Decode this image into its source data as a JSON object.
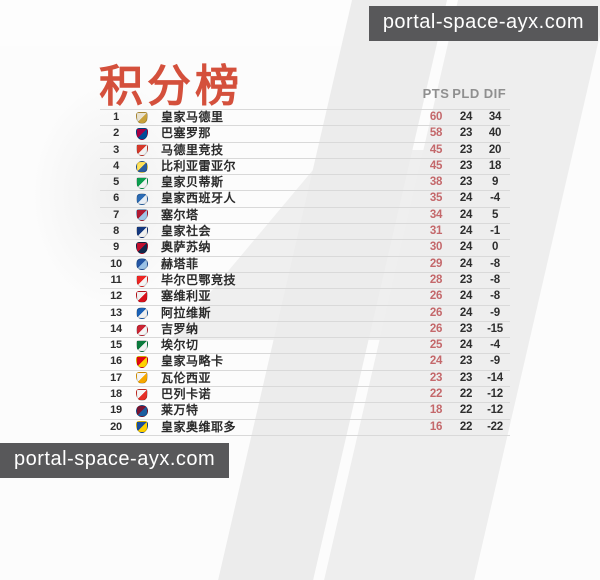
{
  "watermark": {
    "text": "portal-space-ayx.com"
  },
  "colors": {
    "title_red": "#d4503c",
    "points_red": "#c4686b",
    "dark_text": "#2e2e2e",
    "header_gray": "#8f8f8f",
    "line_gray": "#d9d9d9",
    "watermark_bg": "#58585a"
  },
  "chart_data": {
    "type": "table",
    "title": "积分榜",
    "header": {
      "pts": "PTS",
      "pld": "PLD",
      "dif": "DIF"
    },
    "rows": [
      {
        "rank": 1,
        "team": "皇家马德里",
        "icon": "real-madrid-crest",
        "shape": "shield",
        "crest_colors": [
          "#e8e2d0",
          "#c9a13b"
        ],
        "pts": 60,
        "pld": 24,
        "dif": 34
      },
      {
        "rank": 2,
        "team": "巴塞罗那",
        "icon": "barcelona-crest",
        "shape": "shield",
        "crest_colors": [
          "#a50044",
          "#004d98"
        ],
        "pts": 58,
        "pld": 23,
        "dif": 40
      },
      {
        "rank": 3,
        "team": "马德里竞技",
        "icon": "atletico-madrid-crest",
        "shape": "shield",
        "crest_colors": [
          "#d6392b",
          "#f2f2f2"
        ],
        "pts": 45,
        "pld": 23,
        "dif": 20
      },
      {
        "rank": 4,
        "team": "比利亚雷亚尔",
        "icon": "villarreal-crest",
        "shape": "circle",
        "crest_colors": [
          "#ffe25a",
          "#2a5d9f"
        ],
        "pts": 45,
        "pld": 23,
        "dif": 18
      },
      {
        "rank": 5,
        "team": "皇家贝蒂斯",
        "icon": "real-betis-crest",
        "shape": "shield",
        "crest_colors": [
          "#0b9e4e",
          "#f2f2f2"
        ],
        "pts": 38,
        "pld": 23,
        "dif": 9
      },
      {
        "rank": 6,
        "team": "皇家西班牙人",
        "icon": "espanyol-crest",
        "shape": "circle",
        "crest_colors": [
          "#2d6cb5",
          "#e8eef5"
        ],
        "pts": 35,
        "pld": 24,
        "dif": -4
      },
      {
        "rank": 7,
        "team": "塞尔塔",
        "icon": "celta-vigo-crest",
        "shape": "shield",
        "crest_colors": [
          "#b01932",
          "#9fc5e8"
        ],
        "pts": 34,
        "pld": 24,
        "dif": 5
      },
      {
        "rank": 8,
        "team": "皇家社会",
        "icon": "real-sociedad-crest",
        "shape": "shield",
        "crest_colors": [
          "#14387f",
          "#f0f0f0"
        ],
        "pts": 31,
        "pld": 24,
        "dif": -1
      },
      {
        "rank": 9,
        "team": "奥萨苏纳",
        "icon": "osasuna-crest",
        "shape": "shield",
        "crest_colors": [
          "#c00f2f",
          "#10284b"
        ],
        "pts": 30,
        "pld": 24,
        "dif": 0
      },
      {
        "rank": 10,
        "team": "赫塔菲",
        "icon": "getafe-crest",
        "shape": "circle",
        "crest_colors": [
          "#2456a5",
          "#9bc2e6"
        ],
        "pts": 29,
        "pld": 24,
        "dif": -8
      },
      {
        "rank": 11,
        "team": "毕尔巴鄂竞技",
        "icon": "athletic-bilbao-crest",
        "shape": "shield",
        "crest_colors": [
          "#ee2523",
          "#f5f5f5"
        ],
        "pts": 28,
        "pld": 23,
        "dif": -8
      },
      {
        "rank": 12,
        "team": "塞维利亚",
        "icon": "sevilla-crest",
        "shape": "shield",
        "crest_colors": [
          "#f0f0f0",
          "#d8121c"
        ],
        "pts": 26,
        "pld": 24,
        "dif": -8
      },
      {
        "rank": 13,
        "team": "阿拉维斯",
        "icon": "alaves-crest",
        "shape": "circle",
        "crest_colors": [
          "#1b62b7",
          "#f0f0f0"
        ],
        "pts": 26,
        "pld": 24,
        "dif": -9
      },
      {
        "rank": 14,
        "team": "吉罗纳",
        "icon": "girona-crest",
        "shape": "circle",
        "crest_colors": [
          "#cd2534",
          "#f5f5f5"
        ],
        "pts": 26,
        "pld": 23,
        "dif": -15
      },
      {
        "rank": 15,
        "team": "埃尔切",
        "icon": "elche-crest",
        "shape": "shield",
        "crest_colors": [
          "#0a7a3c",
          "#f2f2f2"
        ],
        "pts": 25,
        "pld": 24,
        "dif": -4
      },
      {
        "rank": 16,
        "team": "皇家马略卡",
        "icon": "mallorca-crest",
        "shape": "shield",
        "crest_colors": [
          "#e20613",
          "#ffd200"
        ],
        "pts": 24,
        "pld": 23,
        "dif": -9
      },
      {
        "rank": 17,
        "team": "瓦伦西亚",
        "icon": "valencia-crest",
        "shape": "shield",
        "crest_colors": [
          "#f5f5f5",
          "#f7a800"
        ],
        "pts": 23,
        "pld": 23,
        "dif": -14
      },
      {
        "rank": 18,
        "team": "巴列卡诺",
        "icon": "rayo-vallecano-crest",
        "shape": "shield",
        "crest_colors": [
          "#f5f5f5",
          "#e53027"
        ],
        "pts": 22,
        "pld": 22,
        "dif": -12
      },
      {
        "rank": 19,
        "team": "莱万特",
        "icon": "levante-crest",
        "shape": "circle",
        "crest_colors": [
          "#7a1433",
          "#1b5da0"
        ],
        "pts": 18,
        "pld": 22,
        "dif": -12
      },
      {
        "rank": 20,
        "team": "皇家奥维耶多",
        "icon": "real-oviedo-crest",
        "shape": "shield",
        "crest_colors": [
          "#1b4f9e",
          "#ffd200"
        ],
        "pts": 16,
        "pld": 22,
        "dif": -22
      }
    ]
  }
}
